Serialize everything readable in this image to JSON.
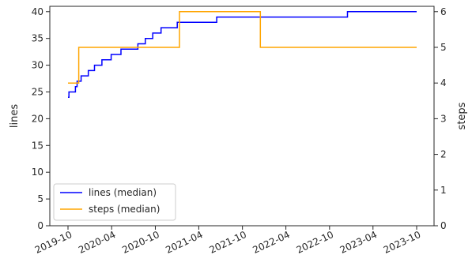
{
  "chart_data": {
    "type": "line",
    "title": "",
    "xlabel": "",
    "ylabel": "lines",
    "y2label": "steps",
    "x_ticks": [
      "2019-10",
      "2020-04",
      "2020-10",
      "2021-04",
      "2021-10",
      "2022-04",
      "2022-10",
      "2023-04",
      "2023-10"
    ],
    "ylim": [
      0,
      41
    ],
    "y_ticks": [
      0,
      5,
      10,
      15,
      20,
      25,
      30,
      35,
      40
    ],
    "y2lim": [
      0,
      6.15
    ],
    "y2_ticks": [
      0,
      1,
      2,
      3,
      4,
      5,
      6
    ],
    "grid": false,
    "legend": {
      "position": "lower-left",
      "entries": [
        "lines (median)",
        "steps (median)"
      ]
    },
    "series": [
      {
        "name": "lines (median)",
        "axis": "left",
        "color": "#0000ff",
        "step": "post",
        "points": [
          [
            "2019-10-01",
            24
          ],
          [
            "2019-10-05",
            25
          ],
          [
            "2019-11-01",
            26
          ],
          [
            "2019-11-08",
            27
          ],
          [
            "2019-11-25",
            28
          ],
          [
            "2019-12-25",
            29
          ],
          [
            "2020-01-20",
            30
          ],
          [
            "2020-02-20",
            31
          ],
          [
            "2020-03-30",
            32
          ],
          [
            "2020-05-10",
            33
          ],
          [
            "2020-07-20",
            34
          ],
          [
            "2020-08-20",
            35
          ],
          [
            "2020-09-20",
            36
          ],
          [
            "2020-10-25",
            37
          ],
          [
            "2021-01-01",
            38
          ],
          [
            "2021-06-15",
            39
          ],
          [
            "2022-12-15",
            40
          ],
          [
            "2023-10-01",
            40
          ]
        ]
      },
      {
        "name": "steps (median)",
        "axis": "right",
        "color": "#ffa500",
        "step": "post",
        "points": [
          [
            "2019-10-01",
            4
          ],
          [
            "2019-11-15",
            5
          ],
          [
            "2021-01-10",
            6
          ],
          [
            "2021-12-15",
            5
          ],
          [
            "2023-10-01",
            5
          ]
        ]
      }
    ]
  }
}
